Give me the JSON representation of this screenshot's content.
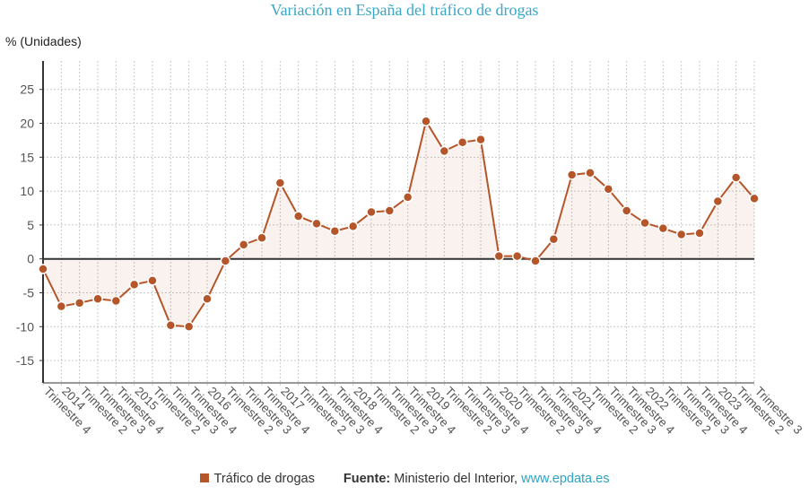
{
  "chart_data": {
    "type": "line",
    "title": "Variación en España del tráfico de drogas",
    "ylabel": "% (Unidades)",
    "xlabel": "",
    "ylim": [
      -18.3,
      29.2
    ],
    "yticks": [
      -15,
      -10,
      -5,
      0,
      5,
      10,
      15,
      20,
      25
    ],
    "grid": true,
    "legend_placement": "bottom",
    "categories": [
      "Trimestre 4",
      "2014",
      "Trimestre 2",
      "Trimestre 3",
      "Trimestre 4",
      "2015",
      "Trimestre 2",
      "Trimestre 3",
      "Trimestre 4",
      "2016",
      "Trimestre 2",
      "Trimestre 3",
      "Trimestre 4",
      "2017",
      "Trimestre 2",
      "Trimestre 3",
      "Trimestre 4",
      "2018",
      "Trimestre 2",
      "Trimestre 3",
      "Trimestre 4",
      "2019",
      "Trimestre 2",
      "Trimestre 3",
      "Trimestre 4",
      "2020",
      "Trimestre 2",
      "Trimestre 3",
      "Trimestre 4",
      "2021",
      "Trimestre 2",
      "Trimestre 3",
      "Trimestre 4",
      "2022",
      "Trimestre 2",
      "Trimestre 3",
      "Trimestre 4",
      "2023",
      "Trimestre 2",
      "Trimestre 3"
    ],
    "series": [
      {
        "name": "Tráfico de drogas",
        "color": "#b5562a",
        "values": [
          -1.5,
          -7.0,
          -6.5,
          -5.9,
          -6.2,
          -3.8,
          -3.2,
          -9.8,
          -10.0,
          -5.9,
          -0.3,
          2.1,
          3.1,
          11.2,
          6.3,
          5.2,
          4.1,
          4.8,
          6.9,
          7.1,
          9.1,
          20.3,
          15.9,
          17.2,
          17.6,
          0.4,
          0.4,
          -0.3,
          2.9,
          12.4,
          12.7,
          10.3,
          7.1,
          5.3,
          4.5,
          3.6,
          3.8,
          8.5,
          12.0,
          8.9
        ]
      }
    ]
  },
  "footer": {
    "legend_label": "Tráfico de drogas",
    "source_label": "Fuente:",
    "source_text": " Ministerio del Interior, ",
    "source_link": "www.epdata.es"
  }
}
